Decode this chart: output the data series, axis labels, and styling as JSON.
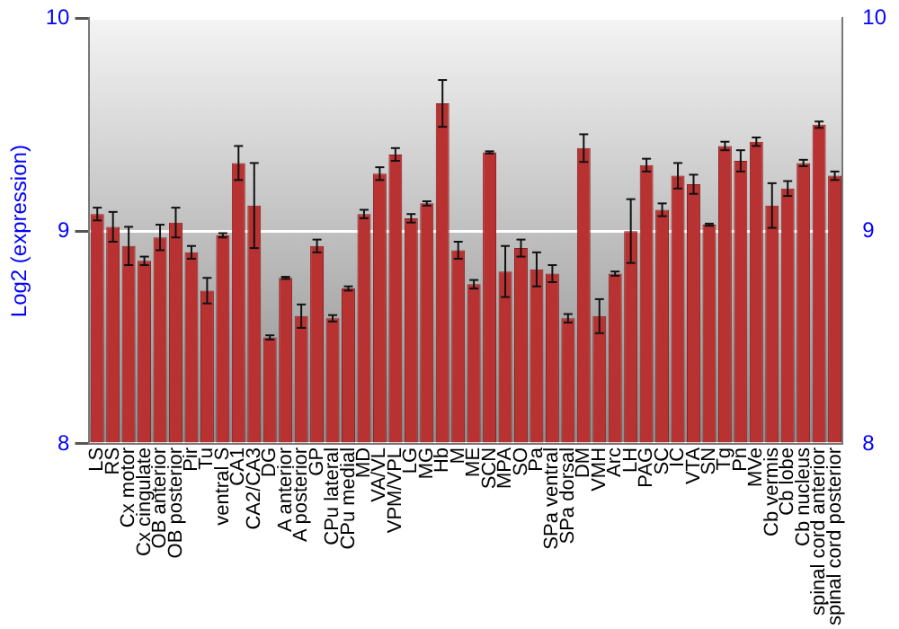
{
  "chart_data": {
    "type": "bar",
    "ylabel": "Log2 (expression)",
    "categories": [
      "LS",
      "RS",
      "Cx motor",
      "Cx cingulate",
      "OB anterior",
      "OB posterior",
      "Pir",
      "Tu",
      "ventral S",
      "CA1",
      "CA2/CA3",
      "DG",
      "A anterior",
      "A posterior",
      "GP",
      "CPu lateral",
      "CPu medial",
      "MD",
      "VA/VL",
      "VPM/VPL",
      "LG",
      "MG",
      "Hb",
      "M",
      "ME",
      "SCN",
      "MPA",
      "SO",
      "Pa",
      "SPa ventral",
      "SPa dorsal",
      "DM",
      "VMH",
      "Arc",
      "LH",
      "PAG",
      "SC",
      "IC",
      "VTA",
      "SN",
      "Tg",
      "Pn",
      "MVe",
      "Cb vermis",
      "Cb lobe",
      "Cb nucleus",
      "spinal cord anterior",
      "spinal cord posterior"
    ],
    "values": [
      9.08,
      9.02,
      8.93,
      8.86,
      8.97,
      9.04,
      8.9,
      8.72,
      8.98,
      9.32,
      9.12,
      8.5,
      8.78,
      8.6,
      8.93,
      8.59,
      8.73,
      9.08,
      9.27,
      9.36,
      9.06,
      9.13,
      9.6,
      8.91,
      8.75,
      9.37,
      8.81,
      8.92,
      8.82,
      8.8,
      8.59,
      9.39,
      8.6,
      8.8,
      9.0,
      9.31,
      9.1,
      9.26,
      9.22,
      9.03,
      9.4,
      9.33,
      9.42,
      9.12,
      9.2,
      9.32,
      9.5,
      9.26
    ],
    "errors": [
      0.03,
      0.07,
      0.09,
      0.02,
      0.06,
      0.07,
      0.03,
      0.06,
      0.01,
      0.08,
      0.2,
      0.01,
      0.005,
      0.055,
      0.03,
      0.015,
      0.01,
      0.02,
      0.03,
      0.03,
      0.02,
      0.01,
      0.11,
      0.04,
      0.02,
      0.005,
      0.12,
      0.04,
      0.08,
      0.04,
      0.02,
      0.065,
      0.08,
      0.01,
      0.15,
      0.03,
      0.03,
      0.06,
      0.045,
      0.005,
      0.02,
      0.05,
      0.02,
      0.105,
      0.035,
      0.015,
      0.015,
      0.02
    ],
    "color": "#b83232",
    "ylim": [
      8,
      10
    ],
    "yticks": [
      8,
      9,
      10
    ],
    "y2lim": [
      8,
      10
    ],
    "y2ticks": [
      8,
      9,
      10
    ],
    "grid": "y",
    "legend": false
  }
}
